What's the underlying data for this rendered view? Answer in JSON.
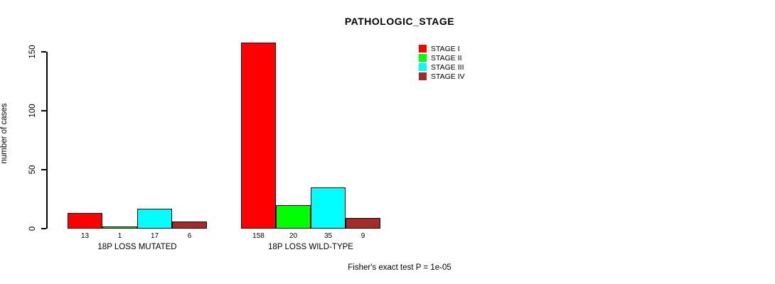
{
  "chart_data": {
    "type": "bar",
    "title": "PATHOLOGIC_STAGE",
    "ylabel": "number of cases",
    "xlabel": "",
    "ylim": [
      0,
      150
    ],
    "yticks": [
      0,
      50,
      100,
      150
    ],
    "grid": false,
    "legend_position": "top-right",
    "categories": [
      "18P LOSS MUTATED",
      "18P LOSS WILD-TYPE"
    ],
    "series": [
      {
        "name": "STAGE I",
        "color": "#ff0000",
        "values": [
          13,
          158
        ]
      },
      {
        "name": "STAGE II",
        "color": "#00ff00",
        "values": [
          1,
          20
        ]
      },
      {
        "name": "STAGE III",
        "color": "#00ffff",
        "values": [
          17,
          35
        ]
      },
      {
        "name": "STAGE IV",
        "color": "#a52a2a",
        "values": [
          6,
          9
        ]
      }
    ],
    "bar_value_labels": [
      [
        "13",
        "1",
        "17",
        "6"
      ],
      [
        "158",
        "20",
        "35",
        "9"
      ]
    ],
    "annotation": "Fisher's exact test P = 1e-05"
  }
}
